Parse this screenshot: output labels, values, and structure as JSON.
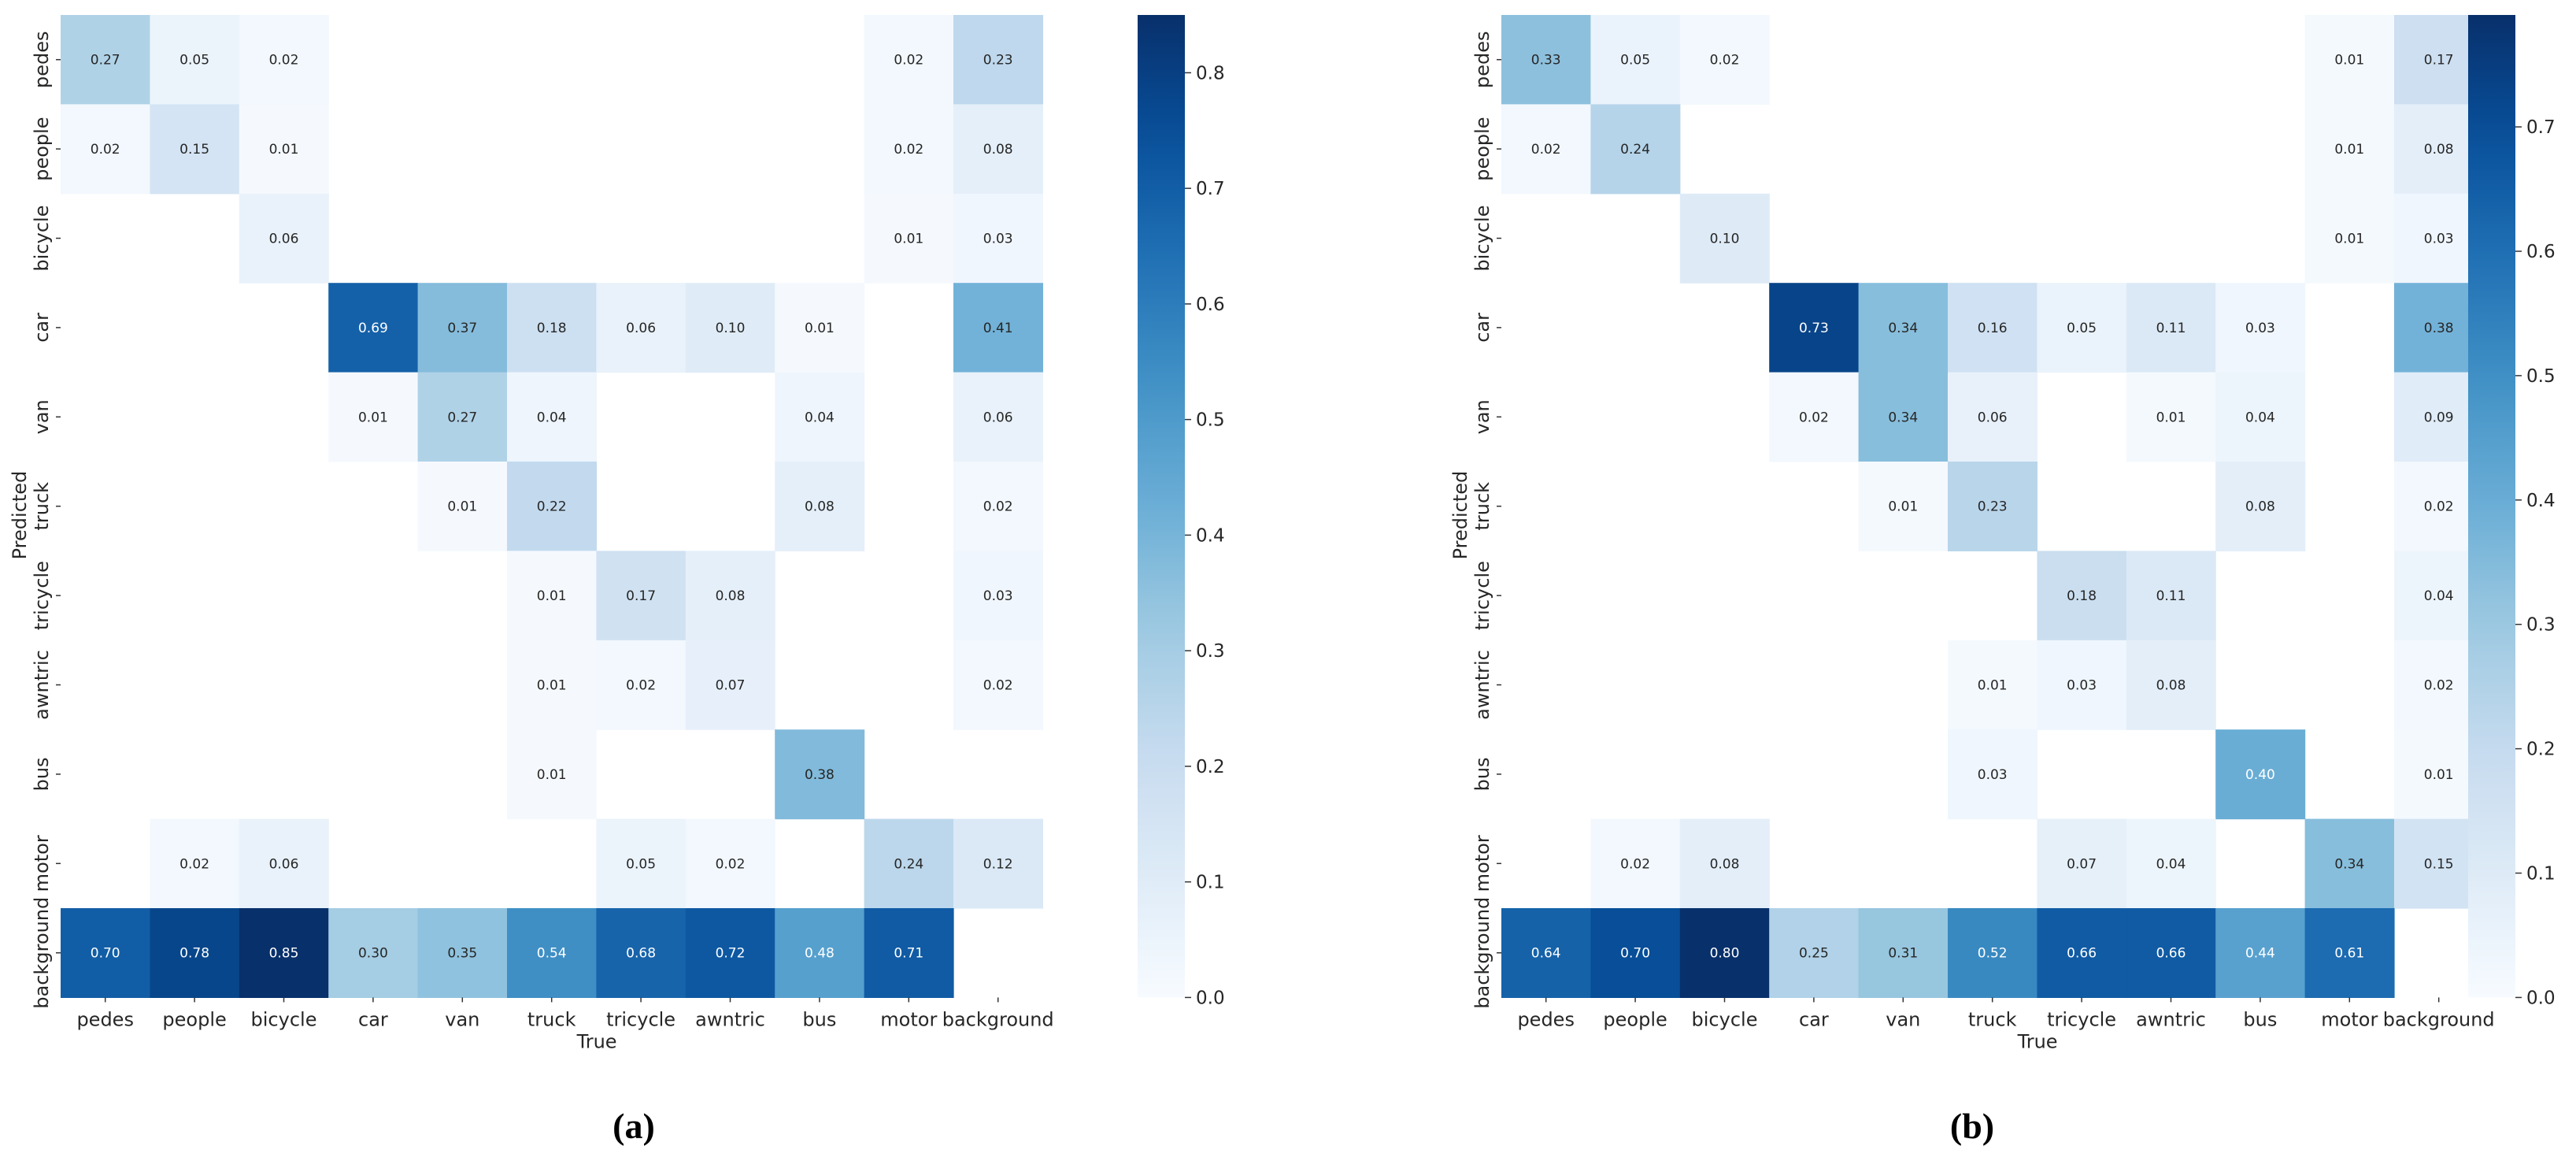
{
  "colorscale": [
    "#f7fbff",
    "#deebf7",
    "#c6dbef",
    "#9ecae1",
    "#6baed6",
    "#4292c6",
    "#2171b5",
    "#08519c",
    "#08306b"
  ],
  "chart_data": [
    {
      "type": "heatmap",
      "caption": "(a)",
      "xlabel": "True",
      "ylabel": "Predicted",
      "x_categories": [
        "pedes",
        "people",
        "bicycle",
        "car",
        "van",
        "truck",
        "tricycle",
        "awntric",
        "bus",
        "motor",
        "background"
      ],
      "y_categories": [
        "pedes",
        "people",
        "bicycle",
        "car",
        "van",
        "truck",
        "tricycle",
        "awntric",
        "bus",
        "motor",
        "background"
      ],
      "values": [
        [
          0.27,
          0.05,
          0.02,
          null,
          null,
          null,
          null,
          null,
          null,
          0.02,
          0.23
        ],
        [
          0.02,
          0.15,
          0.01,
          null,
          null,
          null,
          null,
          null,
          null,
          0.02,
          0.08
        ],
        [
          null,
          null,
          0.06,
          null,
          null,
          null,
          null,
          null,
          null,
          0.01,
          0.03
        ],
        [
          null,
          null,
          null,
          0.69,
          0.37,
          0.18,
          0.06,
          0.1,
          0.01,
          null,
          0.41
        ],
        [
          null,
          null,
          null,
          0.01,
          0.27,
          0.04,
          null,
          null,
          0.04,
          null,
          0.06
        ],
        [
          null,
          null,
          null,
          null,
          0.01,
          0.22,
          null,
          null,
          0.08,
          null,
          0.02
        ],
        [
          null,
          null,
          null,
          null,
          null,
          0.01,
          0.17,
          0.08,
          null,
          null,
          0.03
        ],
        [
          null,
          null,
          null,
          null,
          null,
          0.01,
          0.02,
          0.07,
          null,
          null,
          0.02
        ],
        [
          null,
          null,
          null,
          null,
          null,
          0.01,
          null,
          null,
          0.38,
          null,
          null
        ],
        [
          null,
          0.02,
          0.06,
          null,
          null,
          null,
          0.05,
          0.02,
          null,
          0.24,
          0.12
        ],
        [
          0.7,
          0.78,
          0.85,
          0.3,
          0.35,
          0.54,
          0.68,
          0.72,
          0.48,
          0.71,
          null
        ]
      ],
      "vmin": 0.0,
      "vmax": 0.85,
      "colorbar_ticks": [
        0.0,
        0.1,
        0.2,
        0.3,
        0.4,
        0.5,
        0.6,
        0.7,
        0.8
      ],
      "colorbar_labels": [
        "0.0",
        "0.1",
        "0.2",
        "0.3",
        "0.4",
        "0.5",
        "0.6",
        "0.7",
        "0.8"
      ]
    },
    {
      "type": "heatmap",
      "caption": "(b)",
      "xlabel": "True",
      "ylabel": "Predicted",
      "x_categories": [
        "pedes",
        "people",
        "bicycle",
        "car",
        "van",
        "truck",
        "tricycle",
        "awntric",
        "bus",
        "motor",
        "background"
      ],
      "y_categories": [
        "pedes",
        "people",
        "bicycle",
        "car",
        "van",
        "truck",
        "tricycle",
        "awntric",
        "bus",
        "motor",
        "background"
      ],
      "values": [
        [
          0.33,
          0.05,
          0.02,
          null,
          null,
          null,
          null,
          null,
          null,
          0.01,
          0.17
        ],
        [
          0.02,
          0.24,
          null,
          null,
          null,
          null,
          null,
          null,
          null,
          0.01,
          0.08
        ],
        [
          null,
          null,
          0.1,
          null,
          null,
          null,
          null,
          null,
          null,
          0.01,
          0.03
        ],
        [
          null,
          null,
          null,
          0.73,
          0.34,
          0.16,
          0.05,
          0.11,
          0.03,
          null,
          0.38
        ],
        [
          null,
          null,
          null,
          0.02,
          0.34,
          0.06,
          null,
          0.01,
          0.04,
          null,
          0.09
        ],
        [
          null,
          null,
          null,
          null,
          0.01,
          0.23,
          null,
          null,
          0.08,
          null,
          0.02
        ],
        [
          null,
          null,
          null,
          null,
          null,
          null,
          0.18,
          0.11,
          null,
          null,
          0.04
        ],
        [
          null,
          null,
          null,
          null,
          null,
          0.01,
          0.03,
          0.08,
          null,
          null,
          0.02
        ],
        [
          null,
          null,
          null,
          null,
          null,
          0.03,
          null,
          null,
          0.4,
          null,
          0.01
        ],
        [
          null,
          0.02,
          0.08,
          null,
          null,
          null,
          0.07,
          0.04,
          null,
          0.34,
          0.15
        ],
        [
          0.64,
          0.7,
          0.8,
          0.25,
          0.31,
          0.52,
          0.66,
          0.66,
          0.44,
          0.61,
          null
        ]
      ],
      "vmin": 0.0,
      "vmax": 0.79,
      "colorbar_ticks": [
        0.0,
        0.1,
        0.2,
        0.3,
        0.4,
        0.5,
        0.6,
        0.7
      ],
      "colorbar_labels": [
        "0.0",
        "0.1",
        "0.2",
        "0.3",
        "0.4",
        "0.5",
        "0.6",
        "0.7"
      ]
    }
  ]
}
